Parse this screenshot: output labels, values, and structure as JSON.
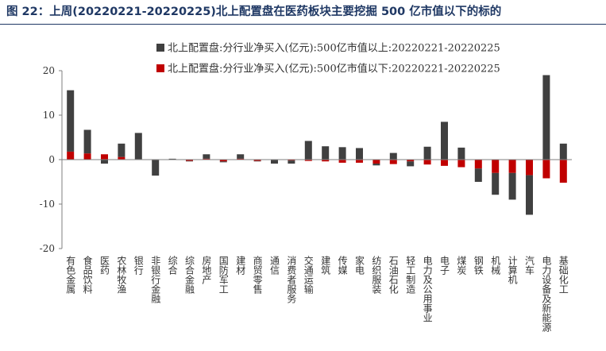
{
  "header": {
    "title": "图 22：上周(20220221-20220225)北上配置盘在医药板块主要挖掘 500 亿市值以下的标的"
  },
  "chart_data": {
    "type": "bar",
    "stacked": true,
    "title": "",
    "xlabel": "",
    "ylabel": "",
    "ylim": [
      -20,
      20
    ],
    "yticks": [
      20,
      10,
      0,
      -10,
      -20
    ],
    "grid": false,
    "legend_position": "top-center",
    "categories": [
      "有色金属",
      "食品饮料",
      "医药",
      "农林牧渔",
      "银行",
      "非银行金融",
      "综合",
      "综合金融",
      "房地产",
      "国防军工",
      "建材",
      "商贸零售",
      "通信",
      "消费者服务",
      "交通运输",
      "建筑",
      "传媒",
      "家电",
      "纺织服装",
      "石油石化",
      "轻工制造",
      "电力及公用事业",
      "电子",
      "煤炭",
      "钢铁",
      "机械",
      "计算机",
      "汽车",
      "电力设备及新能源",
      "基础化工"
    ],
    "series": [
      {
        "name": "北上配置盘:分行业净买入(亿元):500亿市值以上:20220221-20220225",
        "color": "#404040",
        "values": [
          13.8,
          5.3,
          -0.9,
          3.0,
          5.9,
          -3.5,
          0.1,
          -0.1,
          1.0,
          -0.2,
          1.0,
          -0.1,
          -0.8,
          -0.7,
          4.2,
          3.0,
          2.8,
          2.6,
          -0.4,
          1.5,
          -1.1,
          2.9,
          8.5,
          2.7,
          -3.0,
          -4.9,
          -6.0,
          -8.9,
          19.0,
          3.6
        ]
      },
      {
        "name": "北上配置盘:分行业净买入(亿元):500亿市值以下:20220221-20220225",
        "color": "#c00000",
        "values": [
          1.8,
          1.4,
          1.2,
          0.6,
          0.1,
          -0.1,
          0.1,
          -0.3,
          0.2,
          -0.4,
          0.2,
          -0.3,
          -0.1,
          -0.2,
          -0.3,
          -0.4,
          -0.7,
          -0.7,
          -0.9,
          -1.0,
          -0.4,
          -1.1,
          -1.4,
          -1.7,
          -2.0,
          -3.0,
          -3.0,
          -3.5,
          -4.2,
          -5.2
        ]
      }
    ]
  }
}
